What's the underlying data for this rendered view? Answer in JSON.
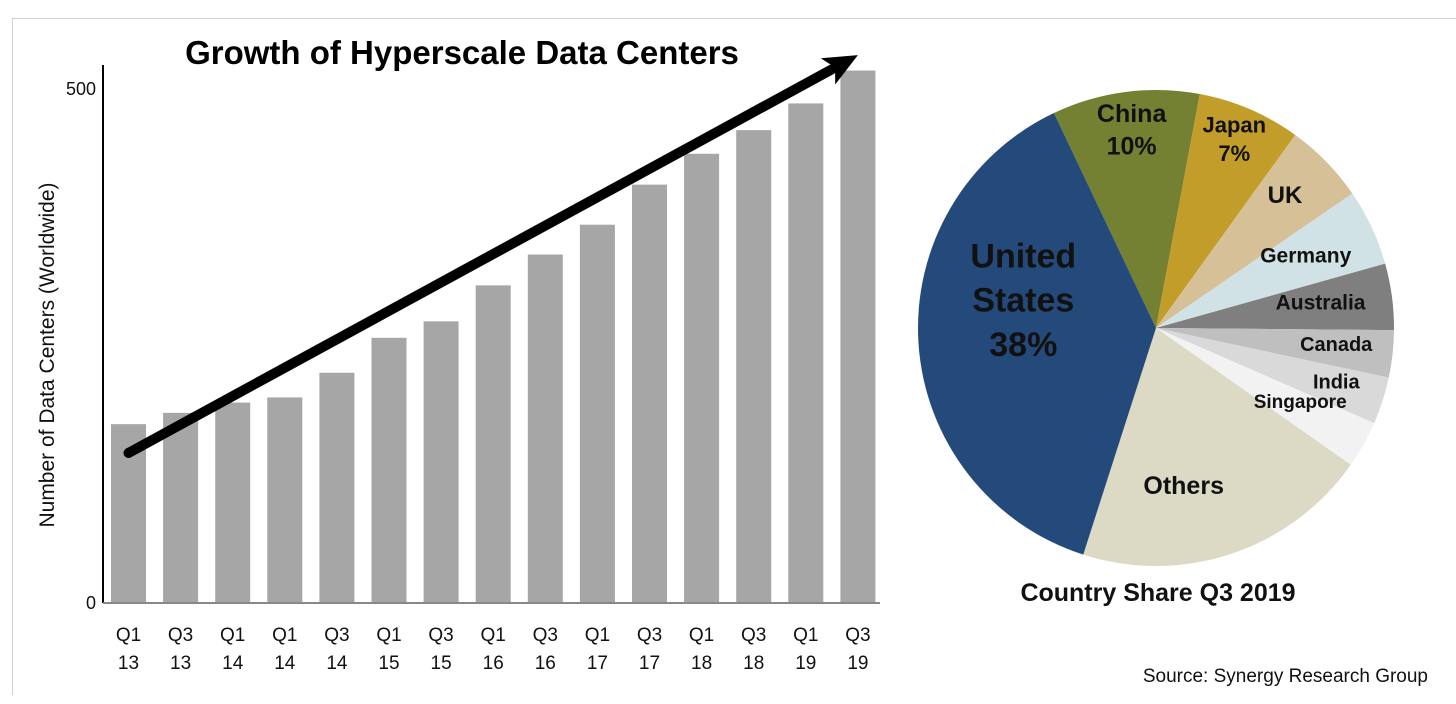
{
  "chart_data": [
    {
      "type": "bar",
      "title": "Growth of Hyperscale Data Centers",
      "xlabel": "",
      "ylabel": "Number of Data Centers (Worldwide)",
      "ylim": [
        0,
        500
      ],
      "yticks": [
        "0",
        "500"
      ],
      "grid": false,
      "categories": [
        [
          "Q1",
          "13"
        ],
        [
          "Q3",
          "13"
        ],
        [
          "Q1",
          "14"
        ],
        [
          "Q1",
          "14"
        ],
        [
          "Q3",
          "14"
        ],
        [
          "Q1",
          "15"
        ],
        [
          "Q3",
          "15"
        ],
        [
          "Q1",
          "16"
        ],
        [
          "Q3",
          "16"
        ],
        [
          "Q1",
          "17"
        ],
        [
          "Q3",
          "17"
        ],
        [
          "Q1",
          "18"
        ],
        [
          "Q3",
          "18"
        ],
        [
          "Q1",
          "19"
        ],
        [
          "Q3",
          "19"
        ]
      ],
      "values": [
        173,
        184,
        194,
        199,
        223,
        257,
        273,
        308,
        338,
        367,
        406,
        436,
        459,
        485,
        517
      ],
      "bar_color": "#a6a6a6",
      "annotation": {
        "type": "trend-arrow",
        "from_category_index": 0,
        "to_category_index": 14,
        "from_value": 145,
        "to_value": 532,
        "color": "#000000"
      }
    },
    {
      "type": "pie",
      "title": "Country Share Q3 2019",
      "start_angle_deg": -25.4,
      "direction": "clockwise",
      "slices": [
        {
          "name": "China",
          "label": [
            "China",
            "10%"
          ],
          "value": 10,
          "color": "#748032",
          "text_color": "#111111",
          "font_size": 25,
          "label_r": 0.84,
          "label_angle": -7
        },
        {
          "name": "Japan",
          "label": [
            "Japan",
            "7%"
          ],
          "value": 7,
          "color": "#c39d2a",
          "text_color": "#111111",
          "font_size": 22,
          "label_r": 0.86,
          "label_angle": 22.5
        },
        {
          "name": "UK",
          "label": [
            "UK"
          ],
          "value": 5.5,
          "color": "#d6c097",
          "text_color": "#111111",
          "font_size": 24,
          "label_r": 0.78,
          "label_angle": 44
        },
        {
          "name": "Germany",
          "label": [
            "Germany"
          ],
          "value": 5.2,
          "color": "#d0e2e5",
          "text_color": "#111111",
          "font_size": 21,
          "label_r": 0.7,
          "label_angle": 64
        },
        {
          "name": "Australia",
          "label": [
            "Australia"
          ],
          "value": 4.5,
          "color": "#7f7f7f",
          "text_color": "#111111",
          "font_size": 21,
          "label_r": 0.7,
          "label_angle": 81
        },
        {
          "name": "Canada",
          "label": [
            "Canada"
          ],
          "value": 3.2,
          "color": "#bfbfbf",
          "text_color": "#111111",
          "font_size": 20,
          "label_r": 0.76,
          "label_angle": 95
        },
        {
          "name": "India",
          "label": [
            "India"
          ],
          "value": 3.2,
          "color": "#d9d9d9",
          "text_color": "#111111",
          "font_size": 20,
          "label_r": 0.79,
          "label_angle": 106.5
        },
        {
          "name": "Singapore",
          "label": [
            "Singapore"
          ],
          "value": 3.2,
          "color": "#f2f2f2",
          "text_color": "#111111",
          "font_size": 19,
          "label_r": 0.68,
          "label_angle": 117
        },
        {
          "name": "Others",
          "label": [
            "Others"
          ],
          "value": 20.2,
          "color": "#dcd9c4",
          "text_color": "#111111",
          "font_size": 25,
          "label_r": 0.67,
          "label_angle": 170
        },
        {
          "name": "United States",
          "label": [
            "United",
            "States",
            "38%"
          ],
          "value": 38,
          "color": "#234a7a",
          "text_color": "#ffffff",
          "font_size": 34,
          "label_r": 0.57,
          "label_angle": 282
        }
      ]
    }
  ],
  "source": "Source: Synergy Research Group"
}
